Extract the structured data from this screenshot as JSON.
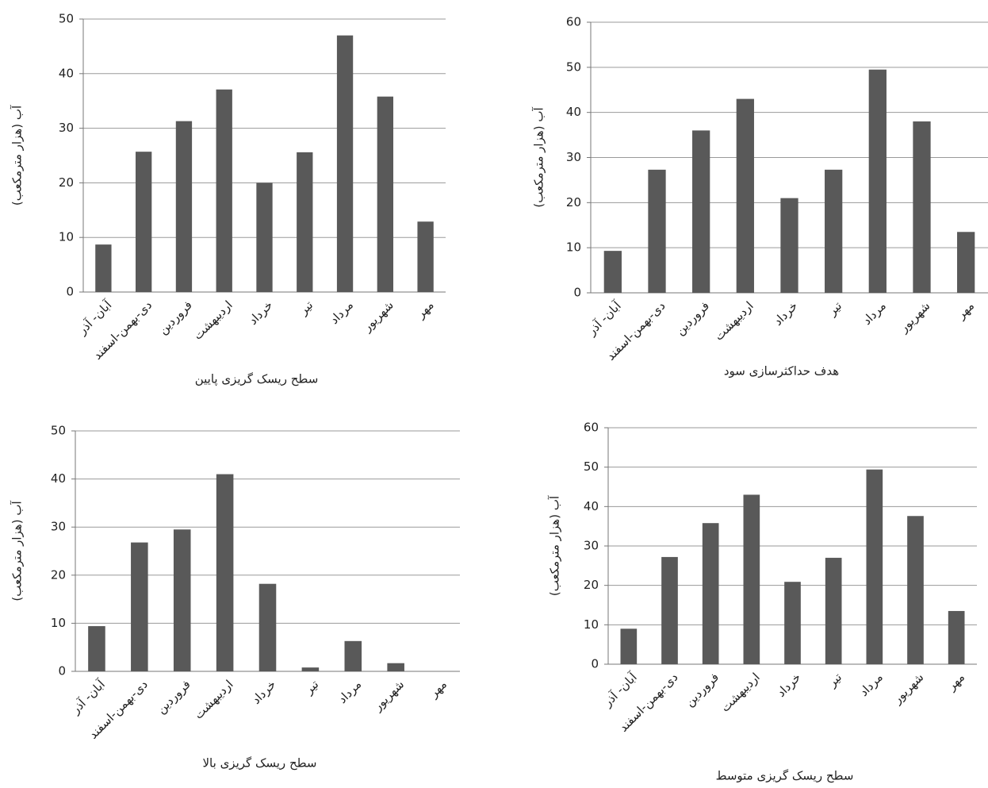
{
  "chart_data": [
    {
      "type": "bar",
      "x_label": "سطح ریسک گریزی پایین",
      "y_label": "آب (هزار مترمکعب)",
      "categories": [
        "آبان- آذر",
        "دی-بهمن-اسفند",
        "فروردین",
        "اردیبهشت",
        "خرداد",
        "تیر",
        "مرداد",
        "شهریور",
        "مهر"
      ],
      "values": [
        8.7,
        25.7,
        31.3,
        37.1,
        20,
        25.6,
        47,
        35.8,
        12.9
      ],
      "color": "#595959",
      "ylim": [
        0,
        50
      ],
      "yticks": [
        0,
        10,
        20,
        30,
        40,
        50
      ],
      "grid": true
    },
    {
      "type": "bar",
      "x_label": "هدف حداکثرسازی سود",
      "y_label": "آب (هزار مترمکعب)",
      "categories": [
        "آبان- آذر",
        "دی-بهمن-اسفند",
        "فروردین",
        "اردیبهشت",
        "خرداد",
        "تیر",
        "مرداد",
        "شهریور",
        "مهر"
      ],
      "values": [
        9.3,
        27.3,
        36,
        43,
        21,
        27.3,
        49.5,
        38,
        13.5
      ],
      "color": "#595959",
      "ylim": [
        0,
        60
      ],
      "yticks": [
        0,
        10,
        20,
        30,
        40,
        50,
        60
      ],
      "grid": true
    },
    {
      "type": "bar",
      "x_label": "سطح ریسک گریزی بالا",
      "y_label": "آب (هزار مترمکعب)",
      "categories": [
        "آبان- آذر",
        "دی-بهمن-اسفند",
        "فروردین",
        "اردیبهشت",
        "خرداد",
        "تیر",
        "مرداد",
        "شهریور",
        "مهر"
      ],
      "values": [
        9.4,
        26.8,
        29.5,
        41,
        18.2,
        0.8,
        6.3,
        1.7,
        0
      ],
      "color": "#595959",
      "ylim": [
        0,
        50
      ],
      "yticks": [
        0,
        10,
        20,
        30,
        40,
        50
      ],
      "grid": true
    },
    {
      "type": "bar",
      "x_label": "سطح ریسک گریزی متوسط",
      "y_label": "آب (هزار مترمکعب)",
      "categories": [
        "آبان- آذر",
        "دی-بهمن-اسفند",
        "فروردین",
        "اردیبهشت",
        "خرداد",
        "تیر",
        "مرداد",
        "شهریور",
        "مهر"
      ],
      "values": [
        9,
        27.2,
        35.8,
        43,
        20.9,
        27,
        49.4,
        37.6,
        13.5
      ],
      "color": "#595959",
      "ylim": [
        0,
        60
      ],
      "yticks": [
        0,
        10,
        20,
        30,
        40,
        50,
        60
      ],
      "grid": true
    }
  ]
}
